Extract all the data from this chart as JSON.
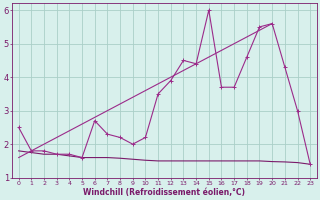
{
  "line_data": {
    "x": [
      0,
      1,
      2,
      3,
      4,
      5,
      6,
      7,
      8,
      9,
      10,
      11,
      12,
      13,
      14,
      15,
      16,
      17,
      18,
      19,
      20,
      21,
      22,
      23
    ],
    "y": [
      2.5,
      1.8,
      1.8,
      1.7,
      1.7,
      1.6,
      2.7,
      2.3,
      2.2,
      2.0,
      2.2,
      3.5,
      3.9,
      4.5,
      4.4,
      6.0,
      3.7,
      3.7,
      4.6,
      5.5,
      5.6,
      4.3,
      3.0,
      1.4
    ],
    "color": "#9b2b8a",
    "lw": 0.8
  },
  "line_trend": {
    "x": [
      0,
      20
    ],
    "y": [
      1.6,
      5.6
    ],
    "color": "#9b2b8a",
    "lw": 0.8
  },
  "line_flat": {
    "x": [
      0,
      1,
      2,
      3,
      4,
      5,
      6,
      7,
      8,
      9,
      10,
      11,
      12,
      13,
      14,
      15,
      16,
      17,
      18,
      19,
      20,
      21,
      22,
      23
    ],
    "y": [
      1.8,
      1.75,
      1.7,
      1.7,
      1.65,
      1.6,
      1.6,
      1.6,
      1.58,
      1.55,
      1.52,
      1.5,
      1.5,
      1.5,
      1.5,
      1.5,
      1.5,
      1.5,
      1.5,
      1.5,
      1.48,
      1.47,
      1.45,
      1.4
    ],
    "color": "#7a1a6a",
    "lw": 0.8
  },
  "bg_color": "#d8f0ec",
  "grid_color": "#aacfc8",
  "axis_color": "#7a1a6a",
  "text_color": "#7a1a6a",
  "xlabel": "Windchill (Refroidissement éolien,°C)",
  "xlim": [
    -0.5,
    23.5
  ],
  "ylim": [
    1.0,
    6.2
  ],
  "xticks": [
    0,
    1,
    2,
    3,
    4,
    5,
    6,
    7,
    8,
    9,
    10,
    11,
    12,
    13,
    14,
    15,
    16,
    17,
    18,
    19,
    20,
    21,
    22,
    23
  ],
  "yticks": [
    1,
    2,
    3,
    4,
    5,
    6
  ],
  "xlabel_fontsize": 5.5,
  "tick_fontsize": 4.5,
  "ytick_fontsize": 6.0
}
